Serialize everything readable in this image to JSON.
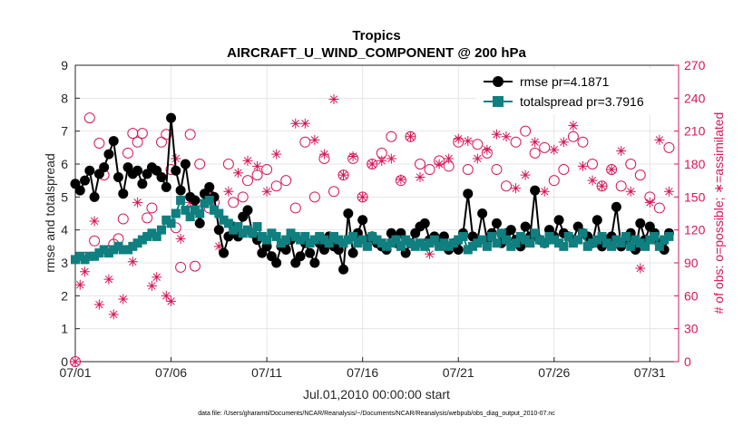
{
  "chart_data": {
    "type": "line",
    "title": "Tropics",
    "subtitle": "AIRCRAFT_U_WIND_COMPONENT @ 200 hPa",
    "xlabel": "Jul.01,2010 00:00:00 start",
    "ylabel": "rmse and totalspread",
    "y2label": "# of obs: o=possible; ∗=assimilated",
    "xlim": [
      0,
      31.5
    ],
    "ylim": [
      0,
      9
    ],
    "y2lim": [
      0,
      270
    ],
    "x_ticks": [
      0,
      5,
      10,
      15,
      20,
      25,
      30
    ],
    "x_tick_labels": [
      "07/01",
      "07/06",
      "07/11",
      "07/16",
      "07/21",
      "07/26",
      "07/31"
    ],
    "y_ticks": [
      0,
      1,
      2,
      3,
      4,
      5,
      6,
      7,
      8,
      9
    ],
    "y2_ticks": [
      0,
      30,
      60,
      90,
      120,
      150,
      180,
      210,
      240,
      270
    ],
    "grid": true,
    "legend": [
      "rmse pr=4.1871",
      "totalspread pr=3.7916"
    ],
    "legend_position": "top-right",
    "colors": {
      "rmse": "#000000",
      "spread": "#0f7f7f",
      "obs": "#d6175a",
      "grid": "#e6e6e6",
      "axis": "#262626"
    },
    "series": [
      {
        "name": "rmse pr=4.1871",
        "x": [
          0,
          0.25,
          0.5,
          0.75,
          1,
          1.25,
          1.5,
          1.75,
          2,
          2.25,
          2.5,
          2.75,
          3,
          3.25,
          3.5,
          3.75,
          4,
          4.25,
          4.5,
          4.75,
          5,
          5.25,
          5.5,
          5.75,
          6,
          6.25,
          6.5,
          6.75,
          7,
          7.25,
          7.5,
          7.75,
          8,
          8.25,
          8.5,
          8.75,
          9,
          9.25,
          9.5,
          9.75,
          10,
          10.25,
          10.5,
          10.75,
          11,
          11.25,
          11.5,
          11.75,
          12,
          12.25,
          12.5,
          12.75,
          13,
          13.25,
          13.5,
          13.75,
          14,
          14.25,
          14.5,
          14.75,
          15,
          15.25,
          15.5,
          15.75,
          16,
          16.25,
          16.5,
          16.75,
          17,
          17.25,
          17.5,
          17.75,
          18,
          18.25,
          18.5,
          18.75,
          19,
          19.25,
          19.5,
          19.75,
          20,
          20.25,
          20.5,
          20.75,
          21,
          21.25,
          21.5,
          21.75,
          22,
          22.25,
          22.5,
          22.75,
          23,
          23.25,
          23.5,
          23.75,
          24,
          24.25,
          24.5,
          24.75,
          25,
          25.25,
          25.5,
          25.75,
          26,
          26.25,
          26.5,
          26.75,
          27,
          27.25,
          27.5,
          27.75,
          28,
          28.25,
          28.5,
          28.75,
          29,
          29.25,
          29.5,
          29.75,
          30,
          30.25,
          30.5,
          30.75,
          31
        ],
        "values": [
          5.4,
          5.2,
          5.5,
          5.8,
          5.0,
          5.7,
          5.9,
          6.3,
          6.7,
          5.6,
          5.1,
          5.9,
          5.7,
          5.8,
          5.4,
          5.7,
          5.9,
          5.8,
          5.6,
          5.3,
          7.4,
          5.8,
          5.2,
          6.0,
          5.0,
          4.9,
          4.2,
          5.1,
          5.3,
          5.0,
          4.0,
          3.3,
          3.8,
          4.1,
          3.8,
          4.4,
          4.6,
          3.9,
          3.7,
          3.3,
          3.5,
          3.2,
          3.0,
          3.5,
          3.4,
          3.7,
          3.0,
          3.2,
          3.6,
          3.3,
          3.0,
          3.6,
          3.4,
          3.8,
          3.5,
          3.4,
          2.8,
          4.5,
          3.3,
          3.9,
          4.3,
          3.7,
          3.8,
          3.6,
          3.5,
          3.4,
          3.9,
          3.6,
          3.9,
          3.3,
          3.6,
          3.9,
          4.1,
          4.2,
          3.7,
          3.8,
          3.6,
          3.8,
          3.4,
          3.6,
          3.4,
          3.9,
          5.1,
          3.8,
          3.7,
          4.5,
          3.7,
          3.9,
          4.2,
          3.6,
          3.9,
          4.0,
          3.7,
          3.5,
          4.1,
          3.8,
          5.2,
          3.7,
          3.6,
          4.0,
          3.8,
          4.3,
          3.9,
          3.8,
          3.7,
          4.1,
          3.9,
          3.8,
          3.6,
          4.3,
          3.5,
          3.7,
          3.8,
          4.7,
          3.5,
          3.7,
          3.9,
          3.4,
          4.2,
          3.7,
          4.1,
          3.9,
          3.6,
          3.4,
          3.9
        ],
        "marker": "filled-circle"
      },
      {
        "name": "totalspread pr=3.7916",
        "x": [
          0,
          0.25,
          0.5,
          0.75,
          1,
          1.25,
          1.5,
          1.75,
          2,
          2.25,
          2.5,
          2.75,
          3,
          3.25,
          3.5,
          3.75,
          4,
          4.25,
          4.5,
          4.75,
          5,
          5.25,
          5.5,
          5.75,
          6,
          6.25,
          6.5,
          6.75,
          7,
          7.25,
          7.5,
          7.75,
          8,
          8.25,
          8.5,
          8.75,
          9,
          9.25,
          9.5,
          9.75,
          10,
          10.25,
          10.5,
          10.75,
          11,
          11.25,
          11.5,
          11.75,
          12,
          12.25,
          12.5,
          12.75,
          13,
          13.25,
          13.5,
          13.75,
          14,
          14.25,
          14.5,
          14.75,
          15,
          15.25,
          15.5,
          15.75,
          16,
          16.25,
          16.5,
          16.75,
          17,
          17.25,
          17.5,
          17.75,
          18,
          18.25,
          18.5,
          18.75,
          19,
          19.25,
          19.5,
          19.75,
          20,
          20.25,
          20.5,
          20.75,
          21,
          21.25,
          21.5,
          21.75,
          22,
          22.25,
          22.5,
          22.75,
          23,
          23.25,
          23.5,
          23.75,
          24,
          24.25,
          24.5,
          24.75,
          25,
          25.25,
          25.5,
          25.75,
          26,
          26.25,
          26.5,
          26.75,
          27,
          27.25,
          27.5,
          27.75,
          28,
          28.25,
          28.5,
          28.75,
          29,
          29.25,
          29.5,
          29.75,
          30,
          30.25,
          30.5,
          30.75,
          31
        ],
        "values": [
          3.1,
          3.2,
          3.1,
          3.2,
          3.2,
          3.3,
          3.4,
          3.3,
          3.4,
          3.5,
          3.4,
          3.4,
          3.5,
          3.6,
          3.7,
          3.8,
          3.9,
          3.8,
          4.0,
          4.3,
          4.2,
          4.5,
          4.9,
          4.6,
          4.4,
          4.6,
          4.5,
          4.8,
          4.9,
          4.6,
          4.5,
          4.3,
          4.2,
          4.0,
          4.1,
          3.9,
          4.0,
          3.9,
          4.1,
          3.8,
          3.7,
          3.9,
          3.8,
          3.6,
          3.7,
          3.9,
          3.8,
          3.7,
          3.8,
          3.6,
          3.7,
          3.8,
          3.7,
          3.6,
          3.8,
          3.7,
          3.6,
          3.7,
          3.8,
          3.6,
          3.7,
          3.5,
          3.8,
          3.7,
          3.6,
          3.5,
          3.6,
          3.7,
          3.5,
          3.7,
          3.6,
          3.5,
          3.6,
          3.5,
          3.6,
          3.7,
          3.5,
          3.6,
          3.5,
          3.6,
          3.7,
          3.8,
          3.4,
          3.5,
          3.6,
          3.7,
          3.5,
          3.8,
          3.6,
          3.9,
          3.7,
          3.5,
          3.6,
          3.8,
          3.7,
          3.6,
          3.9,
          3.7,
          3.6,
          3.8,
          3.7,
          3.6,
          3.5,
          3.8,
          3.6,
          3.7,
          3.9,
          3.5,
          3.6,
          3.7,
          3.8,
          3.6,
          3.5,
          3.7,
          3.6,
          3.8,
          3.5,
          3.7,
          3.6,
          3.5,
          3.7,
          3.8,
          3.5,
          3.7,
          3.8
        ],
        "marker": "filled-square"
      },
      {
        "name": "possible (o)",
        "axis": "right",
        "x": [
          0,
          0.5,
          0.75,
          1,
          1.25,
          1.5,
          2,
          2.25,
          2.5,
          2.75,
          3,
          3.25,
          3.5,
          3.75,
          4,
          4.5,
          4.75,
          5,
          5.25,
          5.5,
          6,
          6.25,
          6.5,
          7,
          7.25,
          8,
          8.25,
          8.75,
          9,
          9.5,
          10,
          10.5,
          11,
          11.5,
          12,
          12.5,
          13,
          13.5,
          14,
          14.5,
          15,
          15.5,
          16,
          16.5,
          17,
          17.5,
          18,
          18.5,
          19,
          19.5,
          20,
          20.5,
          21,
          21.5,
          22,
          22.5,
          23,
          23.5,
          24,
          24.5,
          25,
          25.5,
          26,
          26.5,
          27,
          27.5,
          28,
          28.5,
          29,
          29.5,
          30,
          30.5,
          31
        ],
        "values": [
          0,
          95,
          222,
          110,
          199,
          170,
          107,
          112,
          130,
          190,
          208,
          200,
          208,
          131,
          140,
          200,
          207,
          175,
          122,
          86,
          207,
          87,
          180,
          140,
          145,
          180,
          145,
          150,
          165,
          170,
          175,
          160,
          165,
          140,
          200,
          150,
          185,
          155,
          170,
          185,
          150,
          180,
          190,
          205,
          165,
          205,
          180,
          175,
          183,
          178,
          200,
          175,
          198,
          190,
          175,
          160,
          200,
          210,
          190,
          195,
          165,
          175,
          205,
          200,
          180,
          160,
          175,
          160,
          180,
          170,
          150,
          140,
          195
        ],
        "marker": "open-circle"
      },
      {
        "name": "assimilated (*)",
        "axis": "right",
        "x": [
          0,
          0.25,
          0.5,
          1,
          1.25,
          1.75,
          2,
          2.25,
          2.5,
          3,
          3.25,
          4,
          4.25,
          4.75,
          5,
          5.25,
          5.5,
          6,
          6.25,
          7,
          7.5,
          8,
          8.5,
          9,
          9.5,
          10,
          10.5,
          11,
          11.5,
          12,
          12.5,
          13,
          13.5,
          14,
          14.5,
          15,
          15.5,
          16,
          16.5,
          17,
          17.5,
          18,
          18.5,
          19,
          19.5,
          20,
          20.5,
          21,
          21.5,
          22,
          22.5,
          23,
          23.5,
          24,
          24.5,
          25,
          25.5,
          26,
          26.5,
          27,
          27.5,
          28,
          28.5,
          29,
          29.5,
          30,
          30.5,
          31
        ],
        "values": [
          0,
          70,
          82,
          128,
          52,
          75,
          43,
          168,
          57,
          91,
          145,
          69,
          77,
          60,
          55,
          185,
          112,
          145,
          142,
          155,
          105,
          155,
          172,
          183,
          178,
          155,
          189,
          105,
          217,
          217,
          202,
          189,
          239,
          170,
          187,
          150,
          180,
          183,
          185,
          166,
          205,
          168,
          98,
          180,
          185,
          203,
          201,
          185,
          193,
          207,
          205,
          158,
          170,
          200,
          155,
          193,
          200,
          215,
          178,
          165,
          160,
          175,
          192,
          155,
          85,
          145,
          202,
          155
        ],
        "marker": "asterisk"
      }
    ]
  },
  "footnote": "data file: /Users/gharamti/Documents/NCAR/Reanalysis/~/Documents/NCAR/Reanalysis/webpub/obs_diag_output_2010-07.nc"
}
